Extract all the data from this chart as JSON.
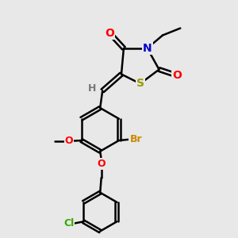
{
  "background_color": "#e8e8e8",
  "bond_color": "#000000",
  "bond_width": 1.8,
  "atom_colors": {
    "O": "#ff0000",
    "N": "#0000cc",
    "S": "#999900",
    "Br": "#cc8800",
    "Cl": "#33aa00",
    "H": "#777777"
  },
  "font_size": 9,
  "fig_size": [
    3.0,
    3.0
  ],
  "dpi": 100,
  "xlim": [
    0,
    10
  ],
  "ylim": [
    0,
    10
  ]
}
